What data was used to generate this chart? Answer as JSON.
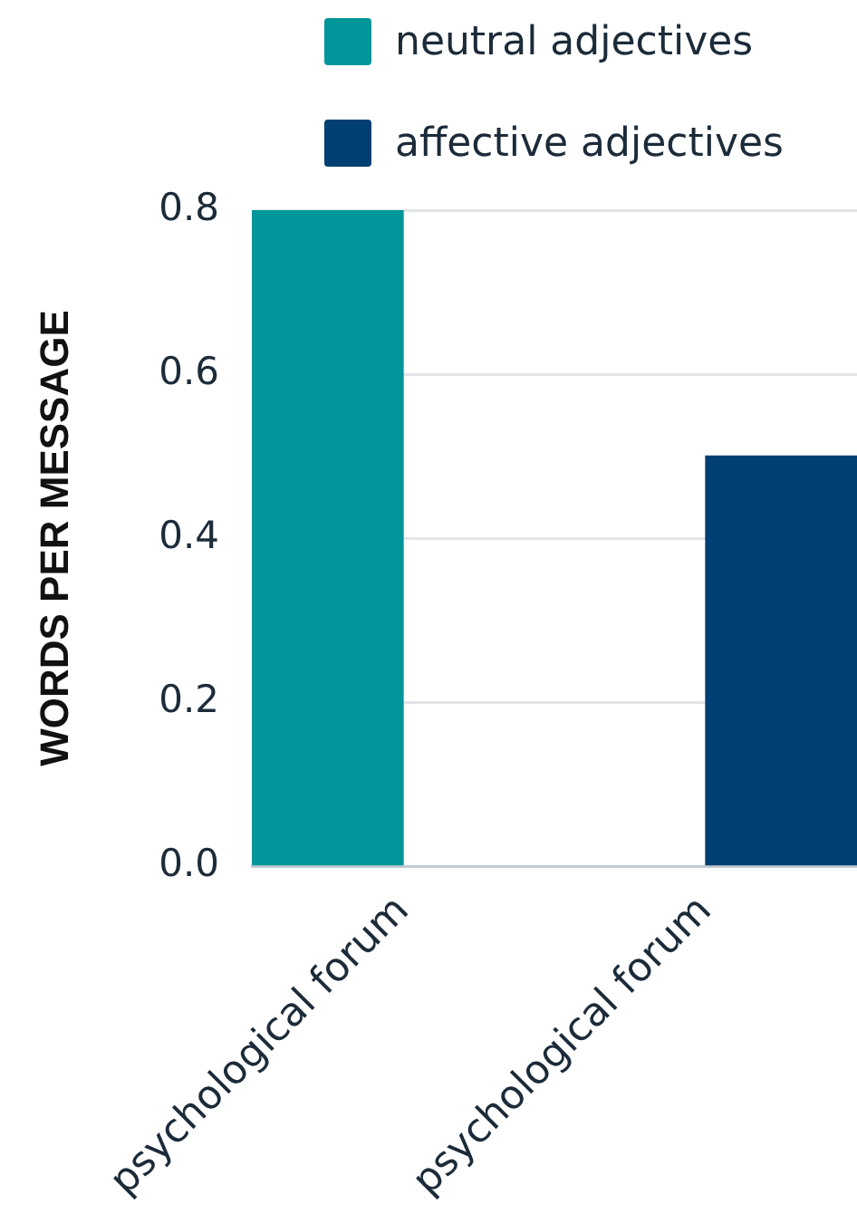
{
  "chart_data": {
    "type": "bar",
    "ylabel": "WORDS PER MESSAGE",
    "categories": [
      "psychological forum",
      "psychological forum"
    ],
    "series": [
      {
        "name": "neutral adjectives",
        "color": "#00969a",
        "values": [
          0.8,
          null
        ]
      },
      {
        "name": "affective adjectives",
        "color": "#003f73",
        "values": [
          null,
          0.5
        ]
      }
    ],
    "ylim": [
      0,
      0.8
    ],
    "yticks": [
      {
        "value": 0,
        "label": "0.0"
      },
      0.2,
      0.4,
      0.6,
      0.8
    ],
    "grid": "y",
    "legend": "top"
  }
}
